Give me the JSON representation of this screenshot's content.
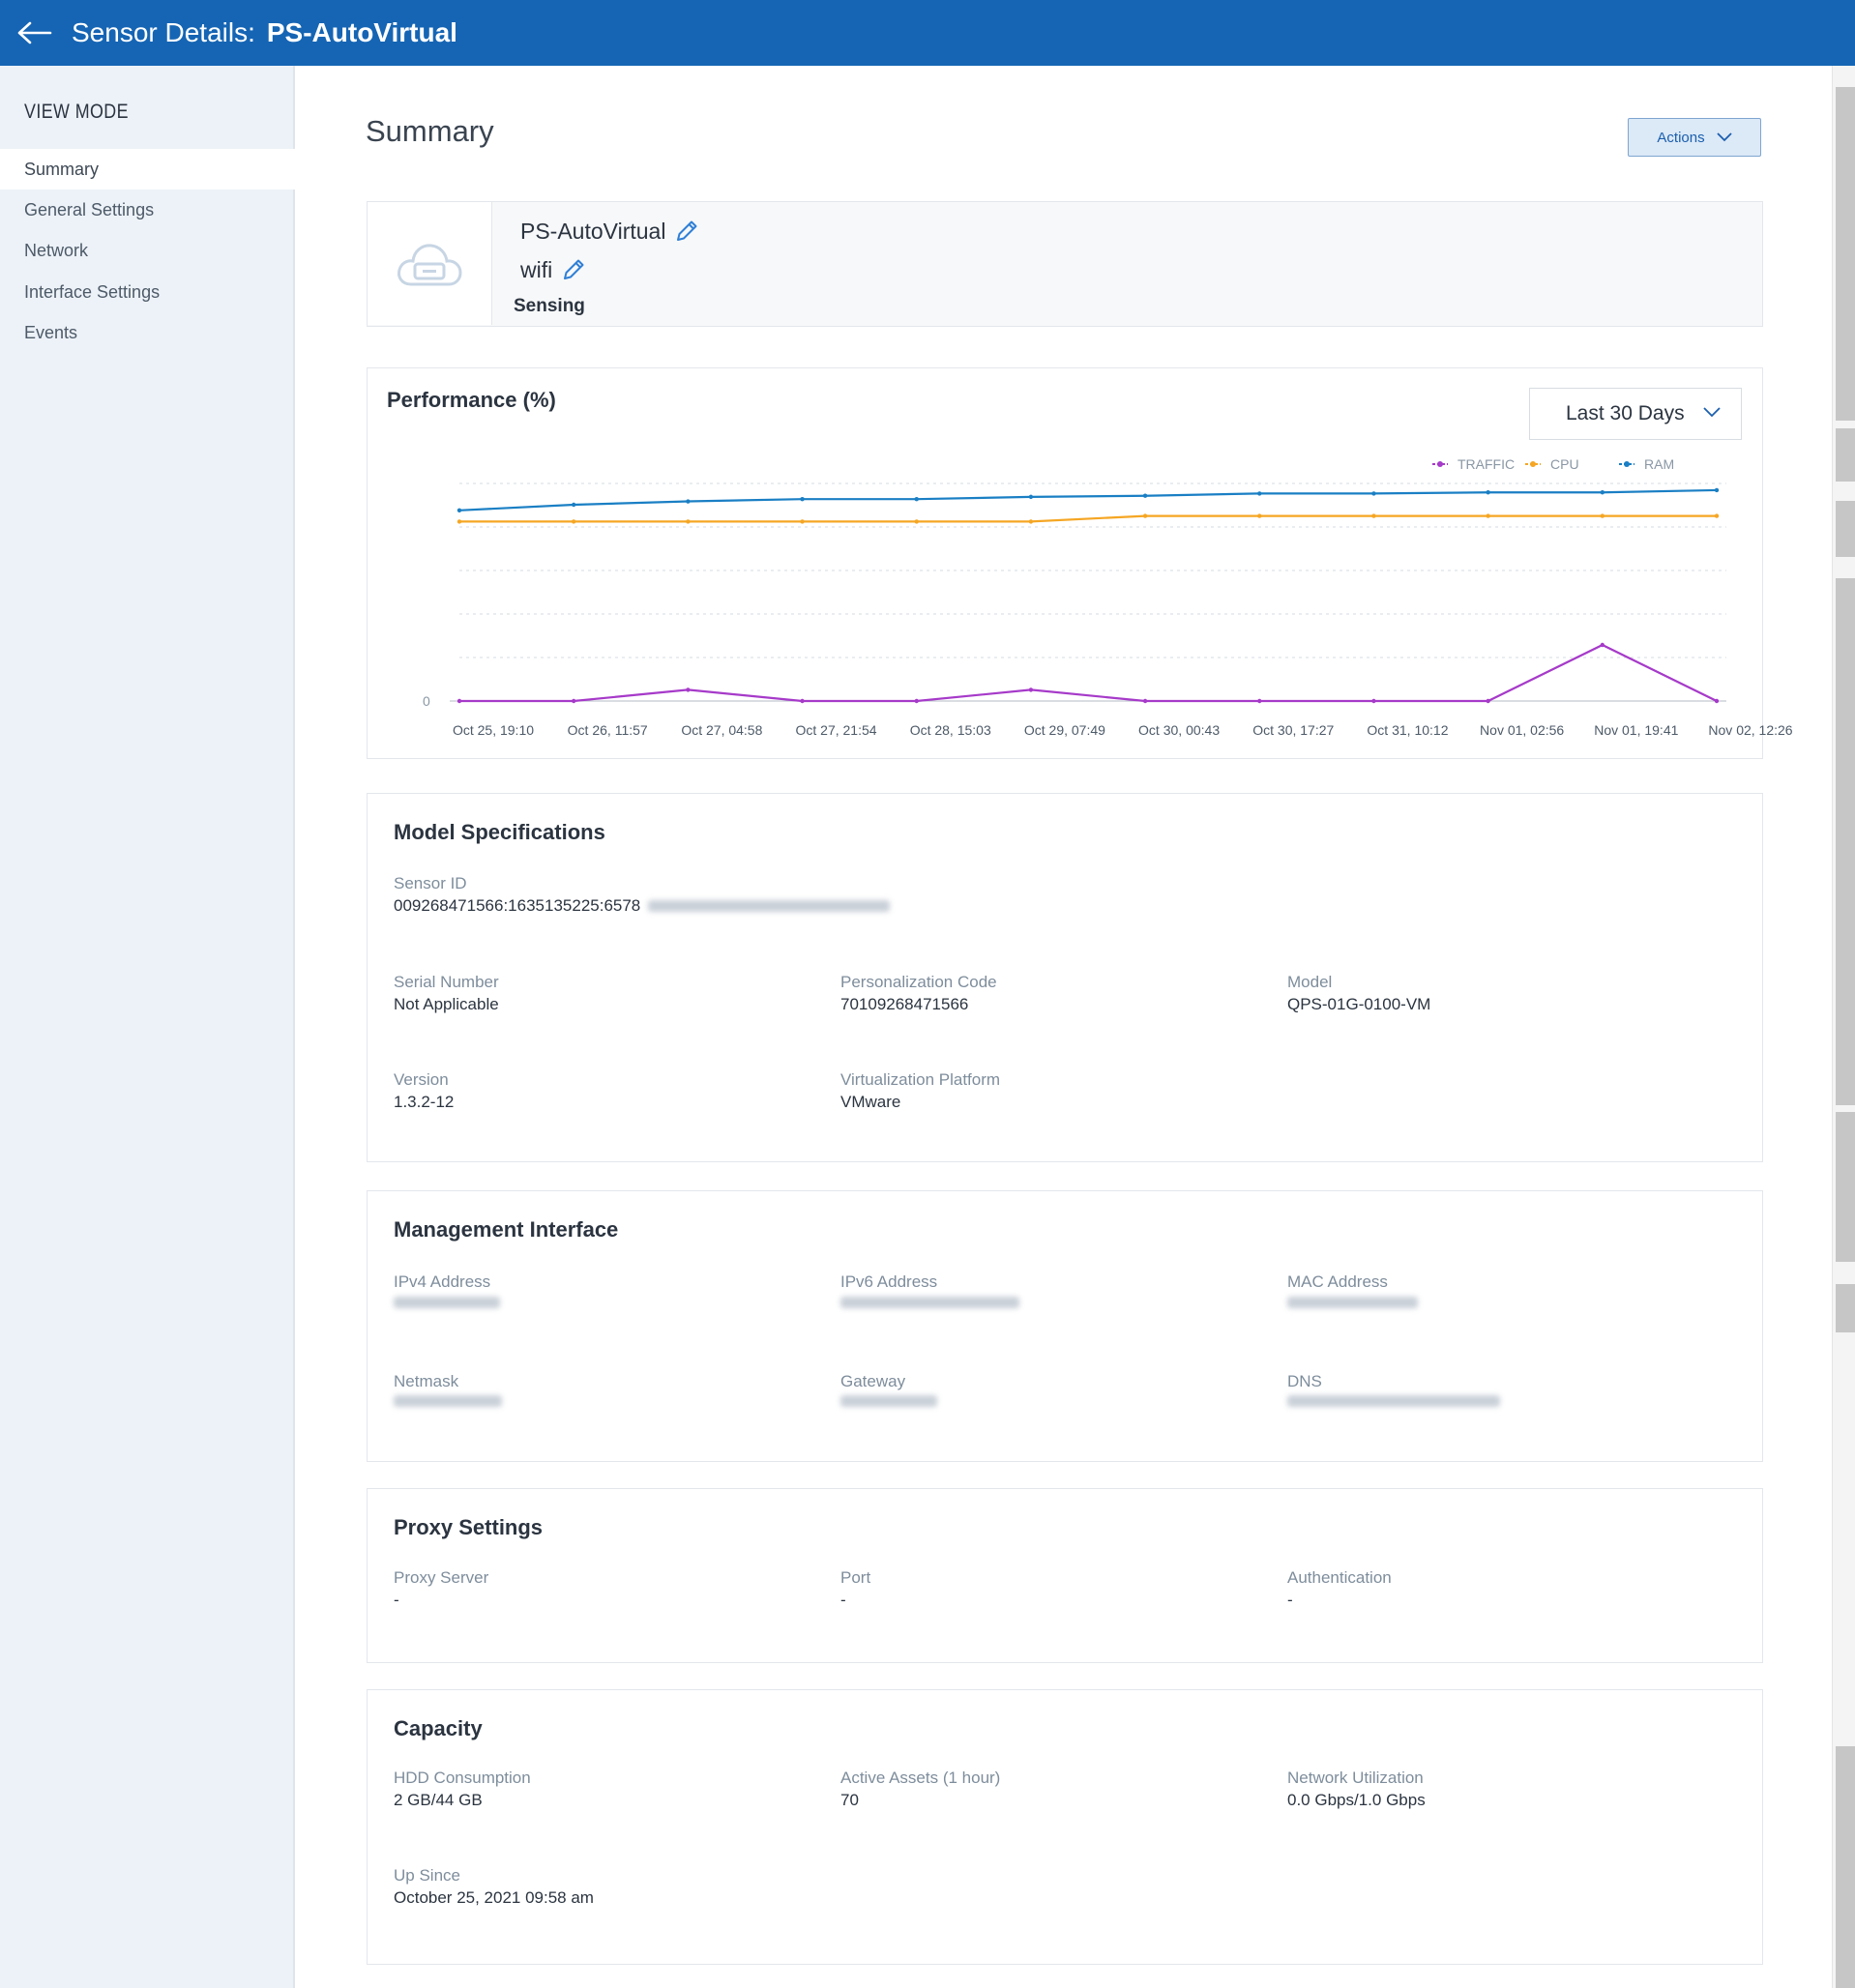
{
  "header": {
    "title": "Sensor Details:",
    "sensor_name": "PS-AutoVirtual"
  },
  "sidebar": {
    "heading": "VIEW MODE",
    "items": [
      {
        "label": "Summary",
        "active": true
      },
      {
        "label": "General Settings",
        "active": false
      },
      {
        "label": "Network",
        "active": false
      },
      {
        "label": "Interface Settings",
        "active": false
      },
      {
        "label": "Events",
        "active": false
      }
    ]
  },
  "page": {
    "title": "Summary",
    "actions_label": "Actions"
  },
  "sensor": {
    "name": "PS-AutoVirtual",
    "group": "wifi",
    "status": "Sensing",
    "icon": "cloud-sensor-icon"
  },
  "performance": {
    "title": "Performance (%)",
    "range": "Last 30 Days",
    "legend": [
      "TRAFFIC",
      "CPU",
      "RAM"
    ]
  },
  "chart_data": {
    "type": "line",
    "title": "Performance (%)",
    "x": [
      "Oct 25, 19:10",
      "Oct 26, 11:57",
      "Oct 27, 04:58",
      "Oct 27, 21:54",
      "Oct 28, 15:03",
      "Oct 29, 07:49",
      "Oct 30, 00:43",
      "Oct 30, 17:27",
      "Oct 31, 10:12",
      "Nov 01, 02:56",
      "Nov 01, 19:41",
      "Nov 02, 12:26"
    ],
    "y_tick_labels": [
      "0"
    ],
    "grid": true,
    "legend_placement": "top-right",
    "series": [
      {
        "name": "TRAFFIC",
        "color": "#a63ac9",
        "values": [
          0,
          0,
          1,
          0,
          0,
          1,
          0,
          0,
          0,
          0,
          5,
          0
        ]
      },
      {
        "name": "CPU",
        "color": "#f5a623",
        "values": [
          16,
          16,
          16,
          16,
          16,
          16,
          16.5,
          16.5,
          16.5,
          16.5,
          16.5,
          16.5
        ]
      },
      {
        "name": "RAM",
        "color": "#1a7fc4",
        "values": [
          17,
          17.5,
          17.8,
          18,
          18,
          18.2,
          18.3,
          18.5,
          18.5,
          18.6,
          18.6,
          18.8
        ]
      }
    ]
  },
  "model_specs": {
    "title": "Model Specifications",
    "sensor_id_label": "Sensor ID",
    "sensor_id_value": "009268471566:1635135225:6578",
    "serial_label": "Serial Number",
    "serial_value": "Not Applicable",
    "pcode_label": "Personalization Code",
    "pcode_value": "70109268471566",
    "model_label": "Model",
    "model_value": "QPS-01G-0100-VM",
    "version_label": "Version",
    "version_value": "1.3.2-12",
    "platform_label": "Virtualization Platform",
    "platform_value": "VMware"
  },
  "mgmt": {
    "title": "Management Interface",
    "ipv4_label": "IPv4 Address",
    "ipv6_label": "IPv6 Address",
    "mac_label": "MAC Address",
    "netmask_label": "Netmask",
    "gateway_label": "Gateway",
    "dns_label": "DNS"
  },
  "proxy": {
    "title": "Proxy Settings",
    "server_label": "Proxy Server",
    "server_value": "-",
    "port_label": "Port",
    "port_value": "-",
    "auth_label": "Authentication",
    "auth_value": "-"
  },
  "capacity": {
    "title": "Capacity",
    "hdd_label": "HDD Consumption",
    "hdd_value": "2 GB/44 GB",
    "assets_label": "Active Assets (1 hour)",
    "assets_value": "70",
    "net_label": "Network Utilization",
    "net_value": "0.0 Gbps/1.0 Gbps",
    "up_label": "Up Since",
    "up_value": "October 25, 2021 09:58 am"
  }
}
